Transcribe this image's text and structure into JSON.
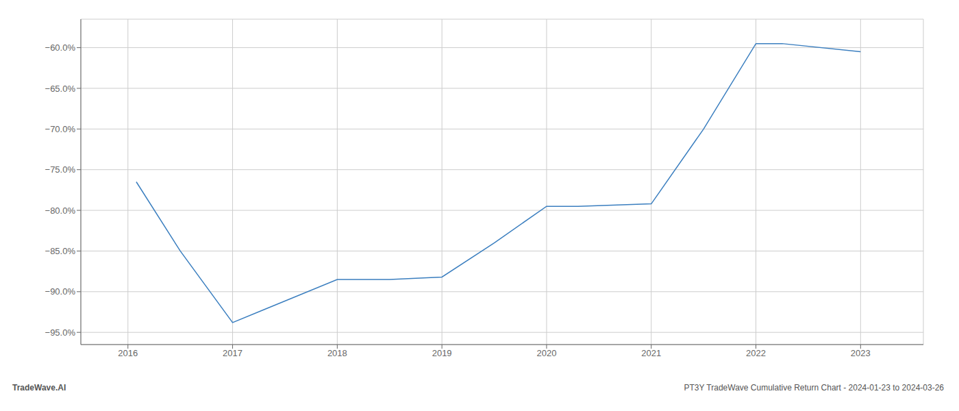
{
  "chart_data": {
    "type": "line",
    "x": [
      2016.08,
      2016.5,
      2017.0,
      2017.3,
      2018.0,
      2018.5,
      2019.0,
      2019.5,
      2020.0,
      2020.3,
      2021.0,
      2021.5,
      2022.0,
      2022.25,
      2023.0
    ],
    "values": [
      -76.5,
      -85.0,
      -93.8,
      -92.2,
      -88.5,
      -88.5,
      -88.2,
      -84.0,
      -79.5,
      -79.5,
      -79.2,
      -70.0,
      -59.5,
      -59.5,
      -60.5
    ],
    "color": "#3a7ebf",
    "xlim": [
      2015.55,
      2023.6
    ],
    "xticks": [
      2016,
      2017,
      2018,
      2019,
      2020,
      2021,
      2022,
      2023
    ],
    "ylim": [
      -96.5,
      -56.5
    ],
    "yticks": [
      {
        "value": -60.0,
        "label": "−60.0%"
      },
      {
        "value": -65.0,
        "label": "−65.0%"
      },
      {
        "value": -70.0,
        "label": "−70.0%"
      },
      {
        "value": -75.0,
        "label": "−75.0%"
      },
      {
        "value": -80.0,
        "label": "−80.0%"
      },
      {
        "value": -85.0,
        "label": "−85.0%"
      },
      {
        "value": -90.0,
        "label": "−90.0%"
      },
      {
        "value": -95.0,
        "label": "−95.0%"
      }
    ],
    "grid": true,
    "annotations": [
      "TradeWave.AI",
      "PT3Y TradeWave Cumulative Return Chart - 2024-01-23 to 2024-03-26"
    ]
  }
}
